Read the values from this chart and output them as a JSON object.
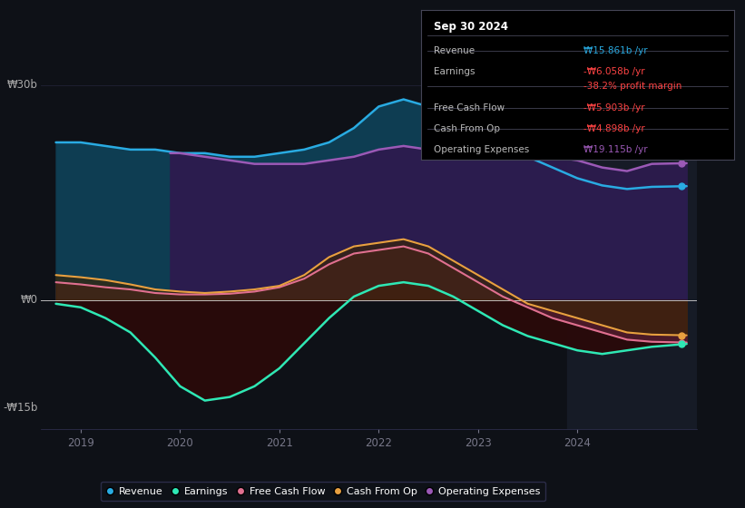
{
  "bg_color": "#0e1117",
  "plot_bg_color": "#0e1117",
  "ylabel_30b": "₩30b",
  "ylabel_0": "₩0",
  "ylabel_neg15b": "-₩15b",
  "ylim": [
    -18,
    33
  ],
  "xlim": [
    2018.6,
    2025.2
  ],
  "x_ticks": [
    2019,
    2020,
    2021,
    2022,
    2023,
    2024
  ],
  "series": {
    "revenue": {
      "label": "Revenue",
      "color": "#29abe2",
      "fill_color": "#1a4055",
      "data_x": [
        2018.75,
        2019.0,
        2019.25,
        2019.5,
        2019.75,
        2020.0,
        2020.25,
        2020.5,
        2020.75,
        2021.0,
        2021.25,
        2021.5,
        2021.75,
        2022.0,
        2022.25,
        2022.5,
        2022.75,
        2023.0,
        2023.25,
        2023.5,
        2023.75,
        2024.0,
        2024.25,
        2024.5,
        2024.75,
        2025.1
      ],
      "data_y": [
        22,
        22,
        21.5,
        21,
        21,
        20.5,
        20.5,
        20,
        20,
        20.5,
        21,
        22,
        24,
        27,
        28,
        27,
        26,
        24.5,
        22,
        20,
        18.5,
        17,
        16,
        15.5,
        15.8,
        15.9
      ]
    },
    "operating_expenses": {
      "label": "Operating Expenses",
      "color": "#9b59b6",
      "fill_color": "#2d1b4e",
      "data_x": [
        2019.9,
        2020.0,
        2020.25,
        2020.5,
        2020.75,
        2021.0,
        2021.25,
        2021.5,
        2021.75,
        2022.0,
        2022.25,
        2022.5,
        2022.75,
        2023.0,
        2023.25,
        2023.5,
        2023.75,
        2024.0,
        2024.25,
        2024.5,
        2024.75,
        2025.1
      ],
      "data_y": [
        20.5,
        20.5,
        20,
        19.5,
        19,
        19,
        19,
        19.5,
        20,
        21,
        21.5,
        21,
        21,
        21.5,
        21,
        20.5,
        20,
        19.5,
        18.5,
        18,
        19,
        19.1
      ]
    },
    "free_cash_flow": {
      "label": "Free Cash Flow",
      "color": "#e07090",
      "fill_color": "#5a1a2a",
      "data_x": [
        2018.75,
        2019.0,
        2019.25,
        2019.5,
        2019.75,
        2020.0,
        2020.25,
        2020.5,
        2020.75,
        2021.0,
        2021.25,
        2021.5,
        2021.75,
        2022.0,
        2022.25,
        2022.5,
        2022.75,
        2023.0,
        2023.25,
        2023.5,
        2023.75,
        2024.0,
        2024.25,
        2024.5,
        2024.75,
        2025.1
      ],
      "data_y": [
        2.5,
        2.2,
        1.8,
        1.5,
        1.0,
        0.8,
        0.8,
        0.9,
        1.2,
        1.8,
        3.0,
        5.0,
        6.5,
        7.0,
        7.5,
        6.5,
        4.5,
        2.5,
        0.5,
        -1.0,
        -2.5,
        -3.5,
        -4.5,
        -5.5,
        -5.8,
        -5.9
      ]
    },
    "cash_from_op": {
      "label": "Cash From Op",
      "color": "#e8a040",
      "fill_color": "#3a2a0a",
      "data_x": [
        2018.75,
        2019.0,
        2019.25,
        2019.5,
        2019.75,
        2020.0,
        2020.25,
        2020.5,
        2020.75,
        2021.0,
        2021.25,
        2021.5,
        2021.75,
        2022.0,
        2022.25,
        2022.5,
        2022.75,
        2023.0,
        2023.25,
        2023.5,
        2023.75,
        2024.0,
        2024.25,
        2024.5,
        2024.75,
        2025.1
      ],
      "data_y": [
        3.5,
        3.2,
        2.8,
        2.2,
        1.5,
        1.2,
        1.0,
        1.2,
        1.5,
        2.0,
        3.5,
        6.0,
        7.5,
        8.0,
        8.5,
        7.5,
        5.5,
        3.5,
        1.5,
        -0.5,
        -1.5,
        -2.5,
        -3.5,
        -4.5,
        -4.8,
        -4.9
      ]
    },
    "earnings": {
      "label": "Earnings",
      "color": "#2ee8b5",
      "fill_color": "#0a2a1a",
      "data_x": [
        2018.75,
        2019.0,
        2019.25,
        2019.5,
        2019.75,
        2020.0,
        2020.25,
        2020.5,
        2020.75,
        2021.0,
        2021.25,
        2021.5,
        2021.75,
        2022.0,
        2022.25,
        2022.5,
        2022.75,
        2023.0,
        2023.25,
        2023.5,
        2023.75,
        2024.0,
        2024.25,
        2024.5,
        2024.75,
        2025.1
      ],
      "data_y": [
        -0.5,
        -1.0,
        -2.5,
        -4.5,
        -8.0,
        -12.0,
        -14.0,
        -13.5,
        -12.0,
        -9.5,
        -6.0,
        -2.5,
        0.5,
        2.0,
        2.5,
        2.0,
        0.5,
        -1.5,
        -3.5,
        -5.0,
        -6.0,
        -7.0,
        -7.5,
        -7.0,
        -6.5,
        -6.1
      ]
    }
  },
  "info_box": {
    "title": "Sep 30 2024",
    "rows": [
      {
        "label": "Revenue",
        "value": "₩15.861b /yr",
        "value_color": "#29abe2",
        "has_line_above": true
      },
      {
        "label": "Earnings",
        "value": "-₩6.058b /yr",
        "value_color": "#ff4444",
        "has_line_above": true
      },
      {
        "label": "",
        "value": "-38.2% profit margin",
        "value_color": "#ff4444",
        "has_line_above": false
      },
      {
        "label": "Free Cash Flow",
        "value": "-₩5.903b /yr",
        "value_color": "#ff4444",
        "has_line_above": true
      },
      {
        "label": "Cash From Op",
        "value": "-₩4.898b /yr",
        "value_color": "#ff4444",
        "has_line_above": true
      },
      {
        "label": "Operating Expenses",
        "value": "₩19.115b /yr",
        "value_color": "#9b59b6",
        "has_line_above": true
      }
    ]
  },
  "legend": [
    {
      "label": "Revenue",
      "color": "#29abe2"
    },
    {
      "label": "Earnings",
      "color": "#2ee8b5"
    },
    {
      "label": "Free Cash Flow",
      "color": "#e07090"
    },
    {
      "label": "Cash From Op",
      "color": "#e8a040"
    },
    {
      "label": "Operating Expenses",
      "color": "#9b59b6"
    }
  ],
  "shaded_region_x_start": 2023.9,
  "zero_line_color": "#cccccc",
  "grid_color": "#2a2a3a",
  "text_color": "#aaaaaa",
  "axis_label_color": "#777788"
}
